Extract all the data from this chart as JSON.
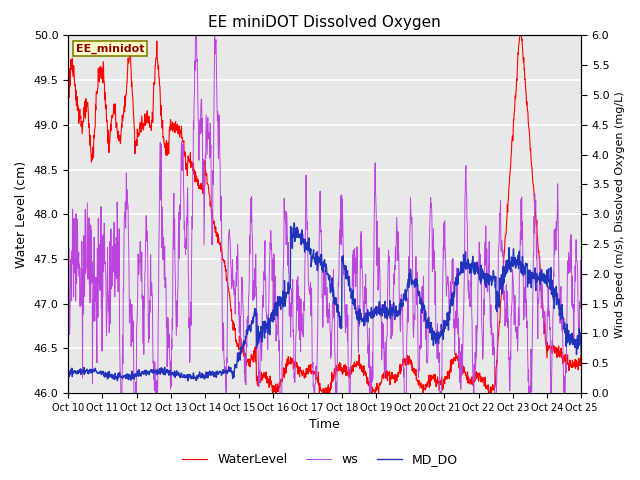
{
  "title": "EE miniDOT Dissolved Oxygen",
  "xlabel": "Time",
  "ylabel_left": "Water Level (cm)",
  "ylabel_right": "Wind Speed (m/s), Dissolved Oxygen (mg/L)",
  "annotation": "EE_minidot",
  "ylim_left": [
    46.0,
    50.0
  ],
  "ylim_right": [
    0.0,
    6.0
  ],
  "x_ticks": [
    "Oct 10",
    "Oct 11",
    "Oct 12",
    "Oct 13",
    "Oct 14",
    "Oct 15",
    "Oct 16",
    "Oct 17",
    "Oct 18",
    "Oct 19",
    "Oct 20",
    "Oct 21",
    "Oct 22",
    "Oct 23",
    "Oct 24",
    "Oct 25"
  ],
  "color_wl": "#FF0000",
  "color_ws": "#BB44DD",
  "color_do": "#2233BB",
  "bg_color": "#E8E8E8",
  "legend_labels": [
    "WaterLevel",
    "ws",
    "MD_DO"
  ],
  "yticks_left": [
    46.0,
    46.5,
    47.0,
    47.5,
    48.0,
    48.5,
    49.0,
    49.5,
    50.0
  ],
  "yticks_right": [
    0.0,
    0.5,
    1.0,
    1.5,
    2.0,
    2.5,
    3.0,
    3.5,
    4.0,
    4.5,
    5.0,
    5.5,
    6.0
  ]
}
